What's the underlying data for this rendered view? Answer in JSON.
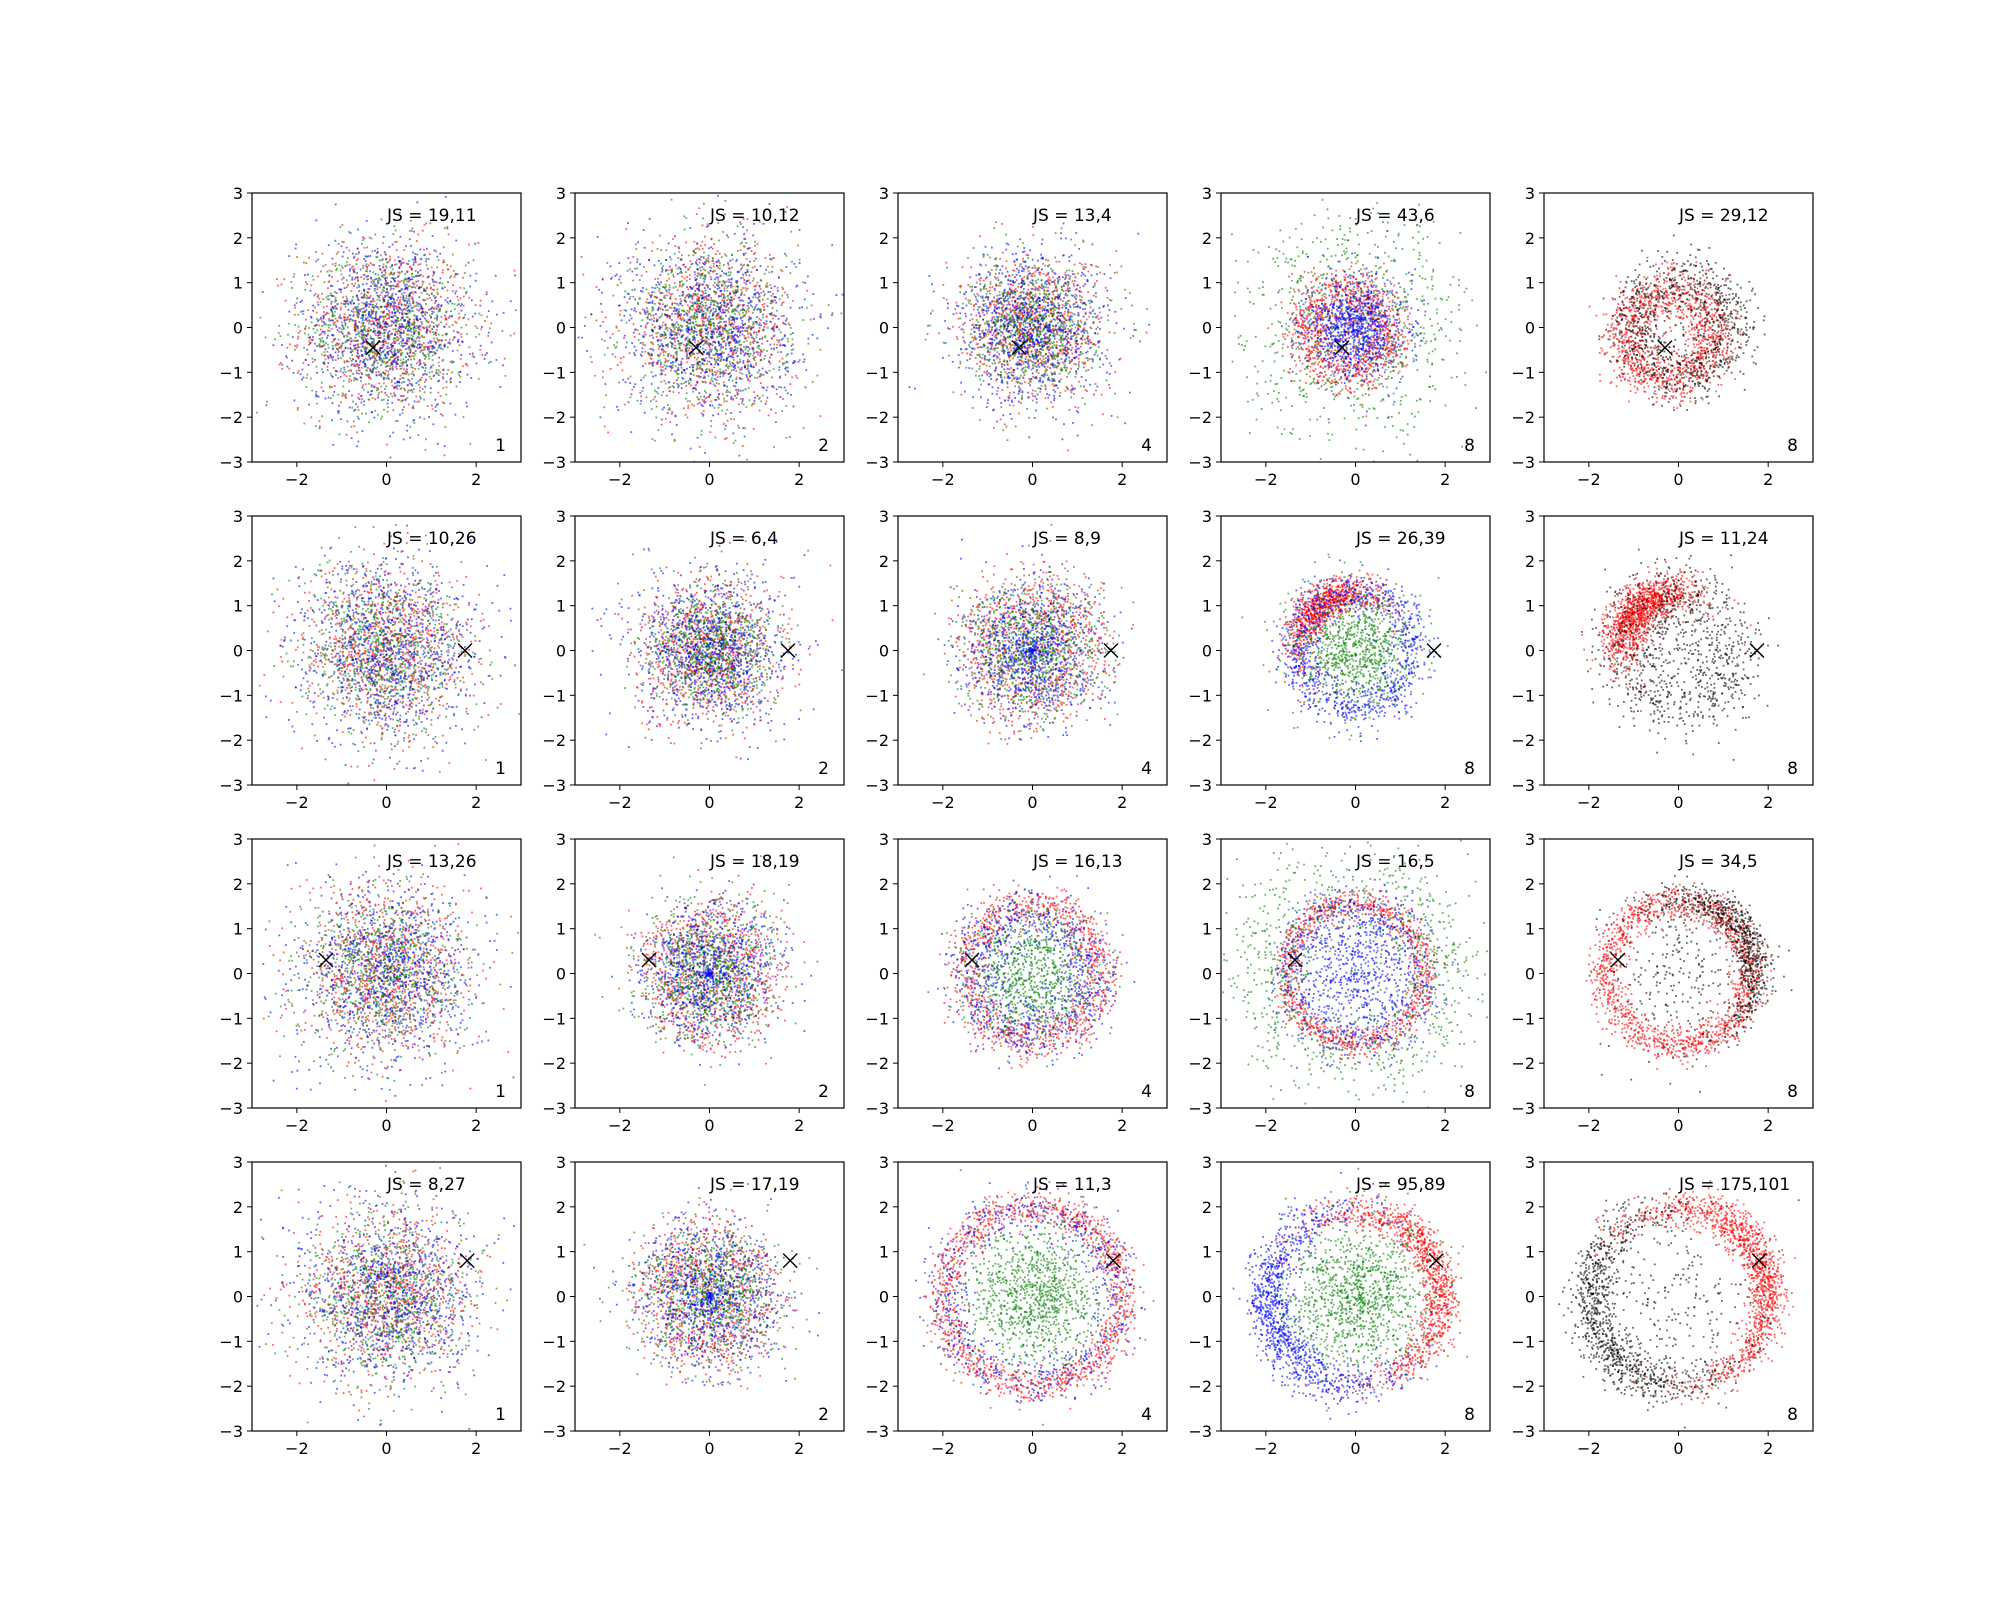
{
  "chart_data": {
    "type": "scatter",
    "layout": {
      "rows": 4,
      "cols": 5
    },
    "xlim": [
      -3,
      3
    ],
    "ylim": [
      -3,
      3
    ],
    "xticks": [
      -2,
      0,
      2
    ],
    "yticks": [
      -3,
      -2,
      -1,
      0,
      1,
      2,
      3
    ],
    "grid": false,
    "colors": {
      "red": "#ff0000",
      "green": "#008000",
      "blue": "#0000ff",
      "black": "#000000"
    },
    "rows": [
      {
        "marker": {
          "x": -0.3,
          "y": -0.45
        },
        "panels": [
          {
            "js": "JS = 19,11",
            "label": "1",
            "pattern": "mix-wide",
            "colors": [
              "red",
              "green",
              "blue"
            ]
          },
          {
            "js": "JS = 10,12",
            "label": "2",
            "pattern": "mix-wide",
            "colors": [
              "red",
              "green",
              "blue"
            ]
          },
          {
            "js": "JS = 13,4",
            "label": "4",
            "pattern": "mix-narrow",
            "colors": [
              "red",
              "green",
              "blue"
            ]
          },
          {
            "js": "JS = 43,6",
            "label": "8",
            "pattern": "green-outer-red-ring-blue-center",
            "colors": [
              "red",
              "green",
              "blue"
            ]
          },
          {
            "js": "JS = 29,12",
            "label": "8",
            "pattern": "ring-red-black",
            "colors": [
              "red",
              "black"
            ]
          }
        ]
      },
      {
        "marker": {
          "x": 1.75,
          "y": 0.0
        },
        "panels": [
          {
            "js": "JS = 10,26",
            "label": "1",
            "pattern": "mix-wide",
            "colors": [
              "red",
              "green",
              "blue"
            ]
          },
          {
            "js": "JS = 6,4",
            "label": "2",
            "pattern": "mix-narrow",
            "colors": [
              "red",
              "green",
              "blue"
            ]
          },
          {
            "js": "JS = 8,9",
            "label": "4",
            "pattern": "mix-ring-hint",
            "colors": [
              "red",
              "green",
              "blue"
            ]
          },
          {
            "js": "JS = 26,39",
            "label": "8",
            "pattern": "ring-red-top-green-center",
            "colors": [
              "red",
              "green",
              "blue"
            ]
          },
          {
            "js": "JS = 11,24",
            "label": "8",
            "pattern": "crescent-red-top-black",
            "colors": [
              "red",
              "black"
            ]
          }
        ]
      },
      {
        "marker": {
          "x": -1.35,
          "y": 0.3
        },
        "panels": [
          {
            "js": "JS = 13,26",
            "label": "1",
            "pattern": "mix-wide",
            "colors": [
              "red",
              "green",
              "blue"
            ]
          },
          {
            "js": "JS = 18,19",
            "label": "2",
            "pattern": "mix-ring-hint",
            "colors": [
              "red",
              "green",
              "blue"
            ]
          },
          {
            "js": "JS = 16,13",
            "label": "4",
            "pattern": "ring-mixed-green-center",
            "colors": [
              "red",
              "green",
              "blue"
            ]
          },
          {
            "js": "JS = 16,5",
            "label": "8",
            "pattern": "ring-red-blue-green-outer",
            "colors": [
              "red",
              "green",
              "blue"
            ]
          },
          {
            "js": "JS = 34,5",
            "label": "8",
            "pattern": "ring-red-black-big",
            "colors": [
              "red",
              "black"
            ]
          }
        ]
      },
      {
        "marker": {
          "x": 1.8,
          "y": 0.8
        },
        "panels": [
          {
            "js": "JS = 8,27",
            "label": "1",
            "pattern": "mix-wide",
            "colors": [
              "red",
              "green",
              "blue"
            ]
          },
          {
            "js": "JS = 17,19",
            "label": "2",
            "pattern": "mix-ring-hint",
            "colors": [
              "red",
              "green",
              "blue"
            ]
          },
          {
            "js": "JS = 11,3",
            "label": "4",
            "pattern": "ring-red-green-center",
            "colors": [
              "red",
              "green",
              "blue"
            ]
          },
          {
            "js": "JS = 95,89",
            "label": "8",
            "pattern": "ring-red-right-blue-left-green-center",
            "colors": [
              "red",
              "green",
              "blue"
            ]
          },
          {
            "js": "JS = 175,101",
            "label": "8",
            "pattern": "ring-red-right-black-left",
            "colors": [
              "red",
              "black"
            ]
          }
        ]
      }
    ]
  }
}
